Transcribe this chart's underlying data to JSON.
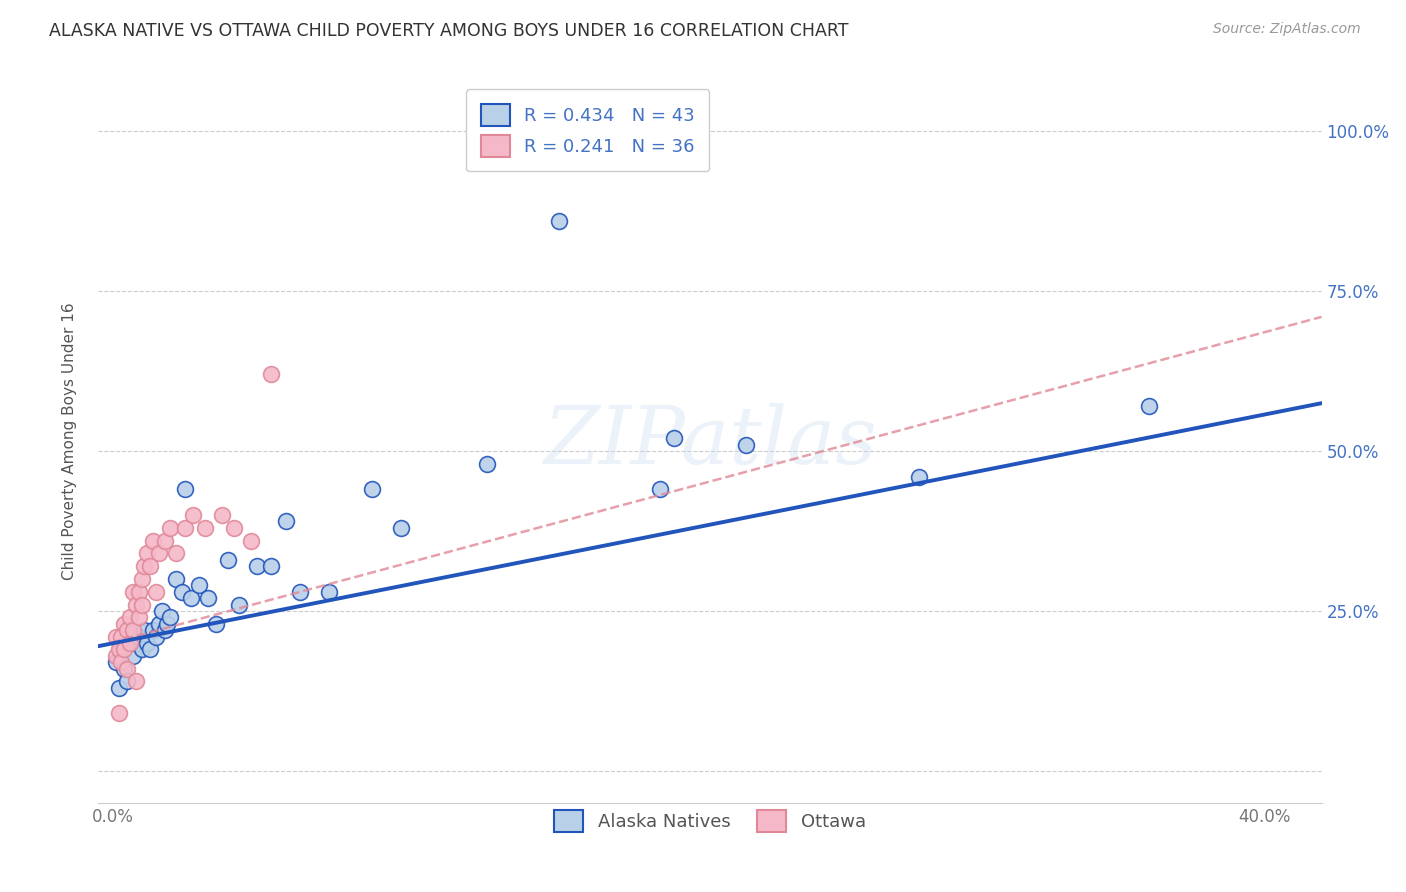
{
  "title": "ALASKA NATIVE VS OTTAWA CHILD POVERTY AMONG BOYS UNDER 16 CORRELATION CHART",
  "source": "Source: ZipAtlas.com",
  "ylabel": "Child Poverty Among Boys Under 16",
  "xlim": [
    -0.005,
    0.42
  ],
  "ylim": [
    -0.05,
    1.08
  ],
  "alaska_R": 0.434,
  "alaska_N": 43,
  "ottawa_R": 0.241,
  "ottawa_N": 36,
  "alaska_color": "#b8d0e8",
  "ottawa_color": "#f5b8c8",
  "alaska_line_color": "#2255BB",
  "ottawa_line_color": "#E08898",
  "legend_label_1": "Alaska Natives",
  "legend_label_2": "Ottawa",
  "alaska_scatter_x": [
    0.001,
    0.002,
    0.003,
    0.004,
    0.005,
    0.006,
    0.007,
    0.008,
    0.009,
    0.01,
    0.011,
    0.012,
    0.013,
    0.014,
    0.015,
    0.016,
    0.017,
    0.018,
    0.019,
    0.02,
    0.022,
    0.024,
    0.025,
    0.027,
    0.03,
    0.033,
    0.036,
    0.04,
    0.044,
    0.05,
    0.055,
    0.06,
    0.065,
    0.075,
    0.09,
    0.1,
    0.13,
    0.155,
    0.19,
    0.22,
    0.28,
    0.36,
    0.195
  ],
  "alaska_scatter_y": [
    0.17,
    0.13,
    0.19,
    0.16,
    0.14,
    0.2,
    0.18,
    0.2,
    0.21,
    0.19,
    0.22,
    0.2,
    0.19,
    0.22,
    0.21,
    0.23,
    0.25,
    0.22,
    0.23,
    0.24,
    0.3,
    0.28,
    0.44,
    0.27,
    0.29,
    0.27,
    0.23,
    0.33,
    0.26,
    0.32,
    0.32,
    0.39,
    0.28,
    0.28,
    0.44,
    0.38,
    0.48,
    0.86,
    0.44,
    0.51,
    0.46,
    0.57,
    0.52
  ],
  "ottawa_scatter_x": [
    0.001,
    0.001,
    0.002,
    0.002,
    0.003,
    0.003,
    0.004,
    0.004,
    0.005,
    0.005,
    0.006,
    0.006,
    0.007,
    0.007,
    0.008,
    0.008,
    0.009,
    0.009,
    0.01,
    0.01,
    0.011,
    0.012,
    0.013,
    0.014,
    0.015,
    0.016,
    0.018,
    0.02,
    0.022,
    0.025,
    0.028,
    0.032,
    0.038,
    0.042,
    0.048,
    0.055
  ],
  "ottawa_scatter_y": [
    0.21,
    0.18,
    0.19,
    0.09,
    0.21,
    0.17,
    0.23,
    0.19,
    0.22,
    0.16,
    0.24,
    0.2,
    0.28,
    0.22,
    0.26,
    0.14,
    0.28,
    0.24,
    0.3,
    0.26,
    0.32,
    0.34,
    0.32,
    0.36,
    0.28,
    0.34,
    0.36,
    0.38,
    0.34,
    0.38,
    0.4,
    0.38,
    0.4,
    0.38,
    0.36,
    0.62
  ]
}
